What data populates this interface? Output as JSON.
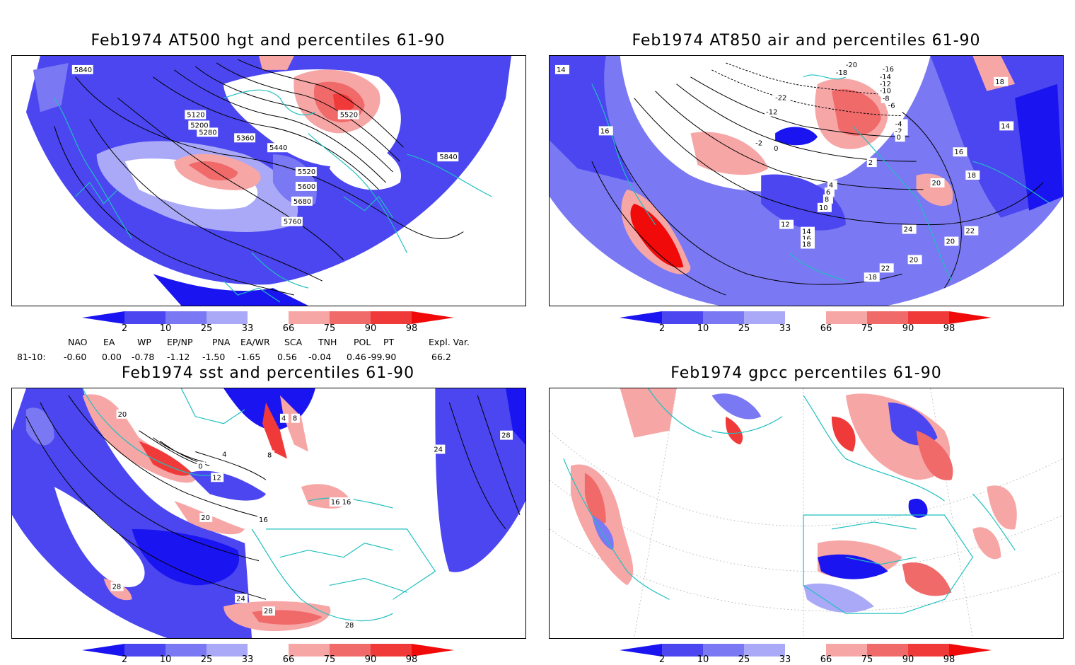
{
  "colors": {
    "blue_dark": "#1a14f0",
    "blue_mid": "#4b46f0",
    "blue_light": "#7a78f3",
    "blue_pale": "#aaa9f7",
    "red_pale": "#f7a6a6",
    "red_light": "#f06a6a",
    "red_mid": "#f03a3a",
    "red_dark": "#f00a0a",
    "coast": "#1fbfbf",
    "contour": "#000000"
  },
  "panels": [
    {
      "title": "Feb1974 AT500 hgt and percentiles 61-90",
      "contour_labels": [
        "5840",
        "5120",
        "5200",
        "5280",
        "5360",
        "5440",
        "5520",
        "5600",
        "5680",
        "5760",
        "5520",
        "5840"
      ]
    },
    {
      "title": "Feb1974 AT850 air and percentiles 61-90",
      "contour_labels": [
        "14",
        "-20",
        "-18",
        "-16",
        "-14",
        "-12",
        "-10",
        "-8",
        "-6",
        "-4",
        "-2",
        "0",
        "2",
        "4",
        "6",
        "8",
        "10",
        "12",
        "14",
        "16",
        "18",
        "20",
        "22",
        "24",
        "16",
        "18",
        "14",
        "16",
        "18",
        "20",
        "22",
        "20",
        "-18",
        "-22",
        "-12",
        "-2",
        "0"
      ]
    },
    {
      "title": "Feb1974 sst and percentiles 61-90",
      "contour_labels": [
        "20",
        "0",
        "4",
        "8",
        "12",
        "16",
        "20",
        "24",
        "28",
        "28",
        "28",
        "16",
        "16",
        "24",
        "28",
        "4",
        "8"
      ]
    },
    {
      "title": "Feb1974 gpcc percentiles 61-90",
      "contour_labels": []
    }
  ],
  "colorbar": {
    "labels": [
      "2",
      "10",
      "25",
      "33",
      "66",
      "75",
      "90",
      "98"
    ]
  },
  "indices": {
    "headers": [
      "NAO",
      "EA",
      "WP",
      "EP/NP",
      "PNA",
      "EA/WR",
      "SCA",
      "TNH",
      "POL",
      "PT",
      "Expl. Var."
    ],
    "row_label": "81-10:",
    "values": [
      "-0.60",
      "0.00",
      "-0.78",
      "-1.12",
      "-1.50",
      "-1.65",
      "0.56",
      "-0.04",
      "0.46",
      "-99.90",
      "66.2"
    ]
  }
}
